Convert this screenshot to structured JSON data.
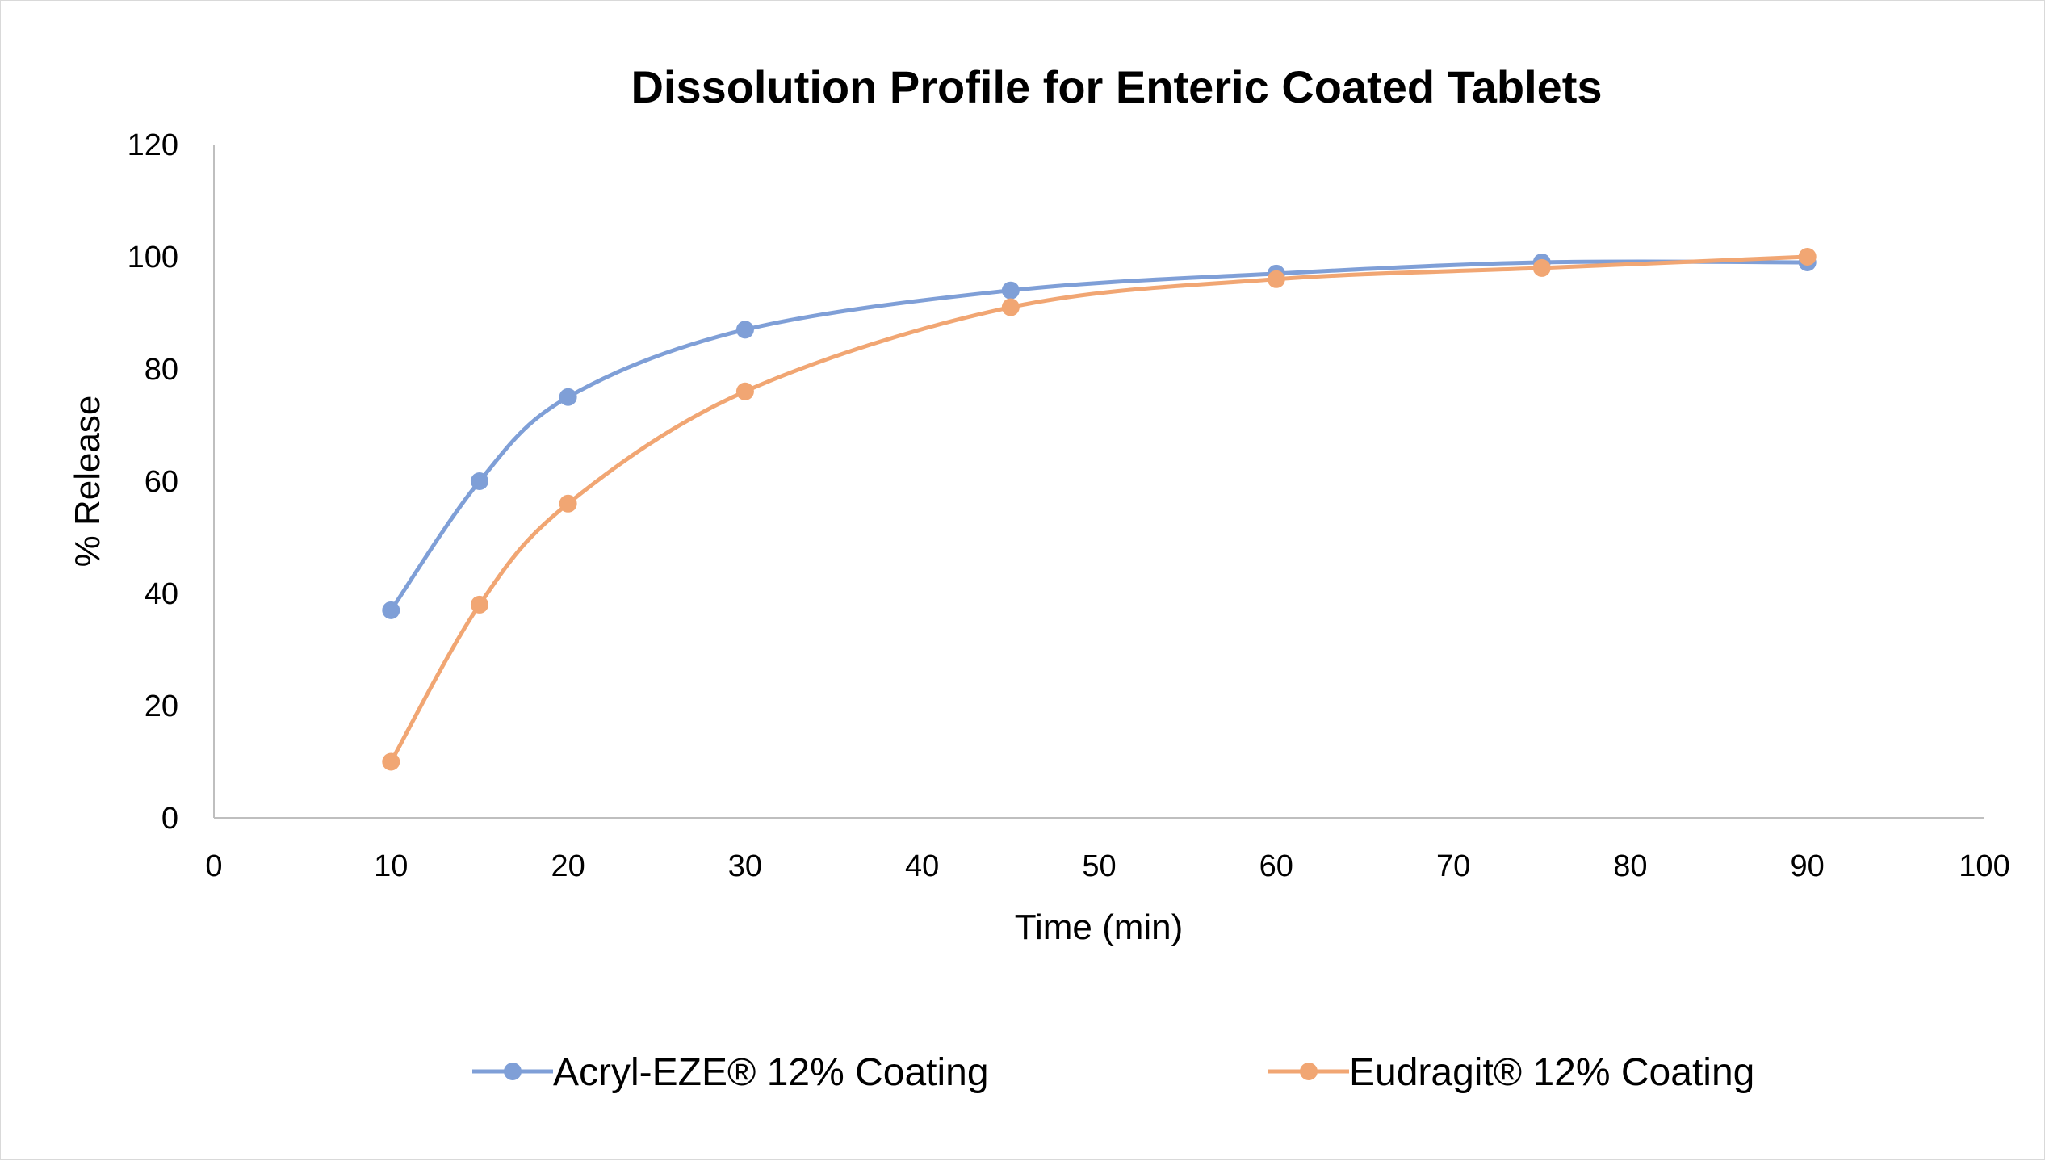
{
  "chart_data": {
    "type": "line",
    "title": "Dissolution Profile for Enteric Coated Tablets",
    "xlabel": "Time (min)",
    "ylabel": "% Release",
    "xlim": [
      0,
      100
    ],
    "ylim": [
      0,
      120
    ],
    "x_ticks": [
      0,
      10,
      20,
      30,
      40,
      50,
      60,
      70,
      80,
      90,
      100
    ],
    "y_ticks": [
      0,
      20,
      40,
      60,
      80,
      100,
      120
    ],
    "grid": false,
    "smooth": true,
    "legend_position": "bottom",
    "x": [
      10,
      15,
      20,
      30,
      45,
      60,
      75,
      90
    ],
    "series": [
      {
        "name": "Acryl-EZE® 12% Coating",
        "color": "#7f9fd7",
        "values": [
          37,
          60,
          75,
          87,
          94,
          97,
          99,
          99
        ]
      },
      {
        "name": "Eudragit® 12% Coating",
        "color": "#f1a673",
        "values": [
          10,
          38,
          56,
          76,
          91,
          96,
          98,
          100
        ]
      }
    ]
  }
}
